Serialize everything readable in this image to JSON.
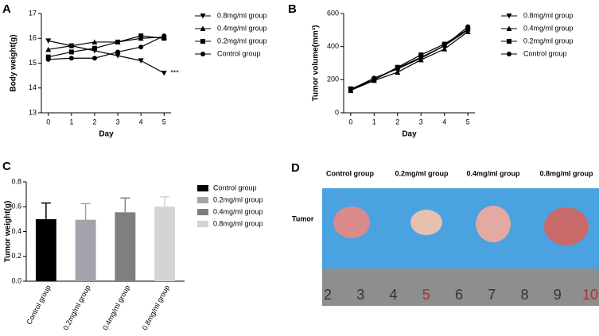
{
  "chart_data": [
    {
      "type": "line",
      "panel": "A",
      "ylabel": "Body weight(g)",
      "xlabel": "Day",
      "x": [
        0,
        1,
        2,
        3,
        4,
        5
      ],
      "xlim": [
        -0.3,
        5.3
      ],
      "xticks": [
        0,
        1,
        2,
        3,
        4,
        5
      ],
      "ylim": [
        13,
        17
      ],
      "yticks": [
        13,
        14,
        15,
        16,
        17
      ],
      "annotation": "***",
      "series": [
        {
          "name": "0.8mg/ml group",
          "color": "#000000",
          "marker": "triangle-down",
          "values": [
            15.9,
            15.7,
            15.5,
            15.3,
            15.1,
            14.6
          ]
        },
        {
          "name": "0.4mg/ml group",
          "color": "#000000",
          "marker": "triangle-up",
          "values": [
            15.55,
            15.7,
            15.85,
            15.85,
            16.0,
            16.05
          ]
        },
        {
          "name": "0.2mg/ml group",
          "color": "#000000",
          "marker": "square",
          "values": [
            15.25,
            15.45,
            15.6,
            15.85,
            16.1,
            16.0
          ]
        },
        {
          "name": "Control group",
          "color": "#000000",
          "marker": "circle",
          "values": [
            15.15,
            15.2,
            15.2,
            15.45,
            15.65,
            16.1
          ]
        }
      ]
    },
    {
      "type": "line",
      "panel": "B",
      "ylabel": "Tumor volume(mm³)",
      "xlabel": "Day",
      "x": [
        0,
        1,
        2,
        3,
        4,
        5
      ],
      "xlim": [
        -0.3,
        5.3
      ],
      "xticks": [
        0,
        1,
        2,
        3,
        4,
        5
      ],
      "ylim": [
        0,
        600
      ],
      "yticks": [
        0,
        200,
        400,
        600
      ],
      "series": [
        {
          "name": "0.8mg/ml group",
          "color": "#000000",
          "marker": "triangle-down",
          "values": [
            140,
            200,
            270,
            335,
            405,
            500
          ]
        },
        {
          "name": "0.4mg/ml group",
          "color": "#000000",
          "marker": "triangle-up",
          "values": [
            135,
            195,
            245,
            320,
            385,
            490
          ]
        },
        {
          "name": "0.2mg/ml group",
          "color": "#000000",
          "marker": "square",
          "values": [
            145,
            200,
            275,
            350,
            415,
            505
          ]
        },
        {
          "name": "Control group",
          "color": "#000000",
          "marker": "circle",
          "values": [
            140,
            210,
            265,
            330,
            405,
            520
          ]
        }
      ]
    },
    {
      "type": "bar",
      "panel": "C",
      "ylabel": "Tumor weight(g)",
      "categories": [
        "Control group",
        "0.2mg/ml group",
        "0.4mg/ml group",
        "0.8mg/ml group"
      ],
      "values": [
        0.5,
        0.495,
        0.555,
        0.6
      ],
      "errors": [
        0.13,
        0.13,
        0.115,
        0.08
      ],
      "colors": [
        "#000000",
        "#a3a3ab",
        "#7f7f7f",
        "#d4d4d4"
      ],
      "ylim": [
        0,
        0.8
      ],
      "yticks": [
        {
          "value": 0,
          "label": "0.0"
        },
        0.2,
        0.4,
        0.6,
        0.8
      ]
    }
  ],
  "photo": {
    "panel": "D",
    "columns": [
      "Control group",
      "0.2mg/ml group",
      "0.4mg/ml group",
      "0.8mg/ml group"
    ],
    "row_label": "Tumor",
    "ruler": [
      "2",
      "3",
      "4",
      "5",
      "6",
      "7",
      "8",
      "9",
      "10"
    ]
  }
}
